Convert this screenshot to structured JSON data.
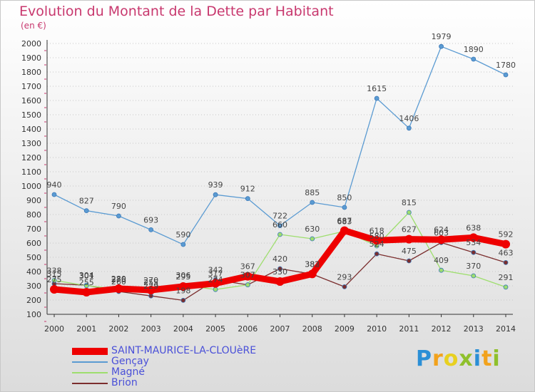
{
  "title": "Evolution du Montant de la Dette par Habitant",
  "unit": "(en €)",
  "logo": "Proxiti",
  "chart_data": {
    "type": "line",
    "x": [
      "2000",
      "2001",
      "2002",
      "2003",
      "2004",
      "2005",
      "2006",
      "2007",
      "2008",
      "2009",
      "2010",
      "2011",
      "2012",
      "2013",
      "2014"
    ],
    "ylim": [
      100,
      2000
    ],
    "ytick_step": 100,
    "grid": "horizontal dotted",
    "legend_position": "bottom-left",
    "series": [
      {
        "name": "SAINT-MAURICE-LA-CLOUèRE",
        "color": "#ee0000",
        "width": 9,
        "marker": 12,
        "values": [
          275,
          255,
          280,
          270,
          295,
          317,
          367,
          330,
          383,
          687,
          618,
          627,
          624,
          638,
          592
        ],
        "labels": [
          "275",
          "255",
          "280",
          "270",
          "295",
          "317",
          "367",
          "330",
          "383",
          "687",
          "618",
          "627",
          "624",
          "638",
          "592"
        ]
      },
      {
        "name": "Gençay",
        "color": "#5b9bd2",
        "width": 1.3,
        "marker": 6,
        "values": [
          940,
          827,
          790,
          693,
          590,
          939,
          912,
          722,
          885,
          850,
          1615,
          1406,
          1979,
          1890,
          1780
        ],
        "labels": [
          "940",
          "827",
          "790",
          "693",
          "590",
          "939",
          "912",
          "722",
          "885",
          "850",
          "1615",
          "1406",
          "1979",
          "1890",
          "1780"
        ]
      },
      {
        "name": "Magné",
        "color": "#9ede6e",
        "width": 1.3,
        "marker": 6,
        "values": [
          338,
          301,
          276,
          255,
          306,
          274,
          307,
          660,
          630,
          683,
          580,
          815,
          409,
          370,
          291
        ],
        "labels": [
          "338",
          "301",
          "276",
          "255",
          "306",
          "274",
          "307",
          "660",
          "630",
          "683",
          "580",
          "815",
          "409",
          "370",
          "291"
        ]
      },
      {
        "name": "Brion",
        "color": "#7b2e2e",
        "width": 1.3,
        "marker": 6,
        "values": [
          315,
          304,
          260,
          229,
          198,
          342,
          307,
          420,
          382,
          293,
          524,
          475,
          603,
          534,
          463
        ],
        "labels": [
          "315",
          "304",
          "260",
          "229",
          "198",
          "342",
          "307",
          "420",
          "382",
          "293",
          "524",
          "475",
          "603",
          "534",
          "463"
        ]
      }
    ]
  }
}
